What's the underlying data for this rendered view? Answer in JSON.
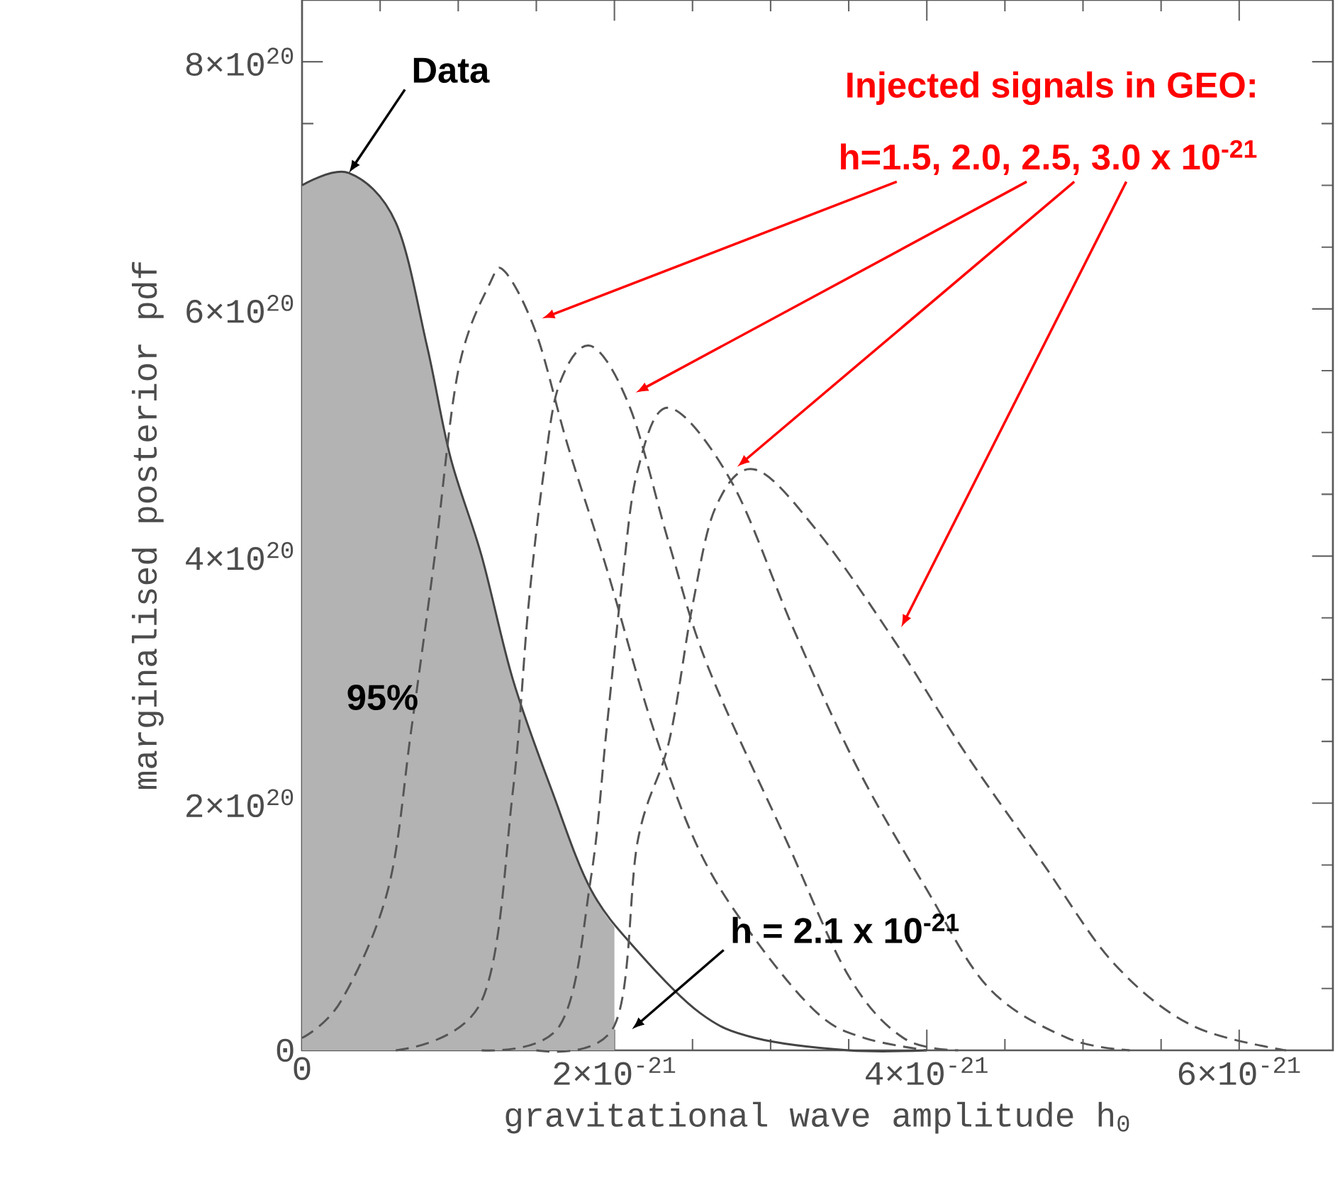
{
  "chart_data": {
    "type": "line",
    "xlabel": "gravitational wave amplitude h$_{0}$",
    "ylabel": "marginalised posterior pdf",
    "xlim": [
      0,
      6.6e-21
    ],
    "ylim": [
      0,
      8.5e+20
    ],
    "xticks": [
      0,
      {
        "value": 2e-21,
        "label": "2×10$^{-21}$"
      },
      {
        "value": 4e-21,
        "label": "4×10$^{-21}$"
      },
      {
        "value": 6e-21,
        "label": "6×10$^{-21}$"
      }
    ],
    "yticks": [
      0,
      {
        "value": 2e+20,
        "label": "2×10$^{20}$"
      },
      {
        "value": 4e+20,
        "label": "4×10$^{20}$"
      },
      {
        "value": 6e+20,
        "label": "6×10$^{20}$"
      },
      {
        "value": 8e+20,
        "label": "8×10$^{20}$"
      }
    ],
    "series": [
      {
        "type": "area",
        "color": "#b3b3b3",
        "x": [
          0,
          3e-22,
          6e-22,
          8e-22,
          9.5e-22,
          1.15e-21,
          1.35e-21,
          1.6e-21,
          1.85e-21,
          2e-21
        ],
        "values": [
          7e+20,
          7.1e+20,
          6.7e+20,
          5.7e+20,
          4.8e+20,
          4e+20,
          3e+20,
          2.1e+20,
          1.3e+20,
          1e+20
        ]
      },
      {
        "line_style": "solid",
        "color": "#444444",
        "x": [
          0,
          3e-22,
          6e-22,
          8e-22,
          9.5e-22,
          1.15e-21,
          1.35e-21,
          1.6e-21,
          1.85e-21,
          2.15e-21,
          2.55e-21,
          2.9e-21,
          3.5e-21,
          4e-21
        ],
        "values": [
          7e+20,
          7.1e+20,
          6.7e+20,
          5.7e+20,
          4.8e+20,
          4e+20,
          3e+20,
          2.1e+20,
          1.3e+20,
          8e+19,
          3e+19,
          1e+19,
          0,
          0
        ]
      },
      {
        "line_style": "dashed",
        "color": "#555555",
        "x": [
          0,
          2.5e-22,
          5.5e-22,
          7e-22,
          8.5e-22,
          1e-21,
          1.2e-21,
          1.3e-21,
          1.5e-21,
          1.7e-21,
          1.95e-21,
          2.25e-21,
          2.55e-21,
          2.9e-21,
          3.3e-21,
          3.6e-21,
          4e-21
        ],
        "values": [
          1e+19,
          4e+19,
          1.3e+20,
          2.6e+20,
          4e+20,
          5.5e+20,
          6.2e+20,
          6.3e+20,
          5.8e+20,
          4.9e+20,
          3.9e+20,
          2.6e+20,
          1.6e+20,
          9e+19,
          3e+19,
          1e+19,
          0
        ]
      },
      {
        "line_style": "dashed",
        "color": "#555555",
        "x": [
          6e-22,
          1.15e-21,
          1.35e-21,
          1.45e-21,
          1.55e-21,
          1.65e-21,
          1.85e-21,
          2.1e-21,
          2.35e-21,
          2.6e-21,
          3.1e-21,
          3.5e-21,
          3.85e-21,
          4.2e-21
        ],
        "values": [
          0,
          4e+19,
          2.1e+20,
          3.6e+20,
          4.7e+20,
          5.4e+20,
          5.7e+20,
          5.2e+20,
          4.1e+20,
          3.1e+20,
          1.7e+20,
          6e+19,
          1e+19,
          0
        ]
      },
      {
        "line_style": "dashed",
        "color": "#555555",
        "x": [
          1.15e-21,
          1.65e-21,
          1.85e-21,
          1.95e-21,
          2.05e-21,
          2.15e-21,
          2.35e-21,
          2.75e-21,
          3.15e-21,
          3.55e-21,
          4e-21,
          4.4e-21,
          4.9e-21,
          5.3e-21
        ],
        "values": [
          0,
          2e+19,
          1.4e+20,
          2.6e+20,
          3.8e+20,
          4.7e+20,
          5.2e+20,
          4.6e+20,
          3.4e+20,
          2.3e+20,
          1.3e+20,
          5e+19,
          1e+19,
          0
        ]
      },
      {
        "line_style": "dashed",
        "color": "#555555",
        "x": [
          1.5e-21,
          2e-21,
          2.15e-21,
          2.35e-21,
          2.5e-21,
          2.65e-21,
          2.9e-21,
          3.3e-21,
          3.8e-21,
          4.25e-21,
          4.75e-21,
          5.2e-21,
          5.7e-21,
          6.3e-21
        ],
        "values": [
          0,
          2e+19,
          1.7e+20,
          2.5e+20,
          3.6e+20,
          4.4e+20,
          4.7e+20,
          4.2e+20,
          3.3e+20,
          2.4e+20,
          1.5e+20,
          7e+19,
          2e+19,
          0
        ]
      }
    ],
    "annotations": [
      {
        "text": "Data",
        "x": 3e-22,
        "y": 7.1e+20
      },
      "Injected signals in GEO:",
      "h=1.5, 2.0, 2.5, 3.0 x 10$^{-21}$",
      "95%",
      "h = 2.1 x 10$^{-21}$"
    ]
  }
}
